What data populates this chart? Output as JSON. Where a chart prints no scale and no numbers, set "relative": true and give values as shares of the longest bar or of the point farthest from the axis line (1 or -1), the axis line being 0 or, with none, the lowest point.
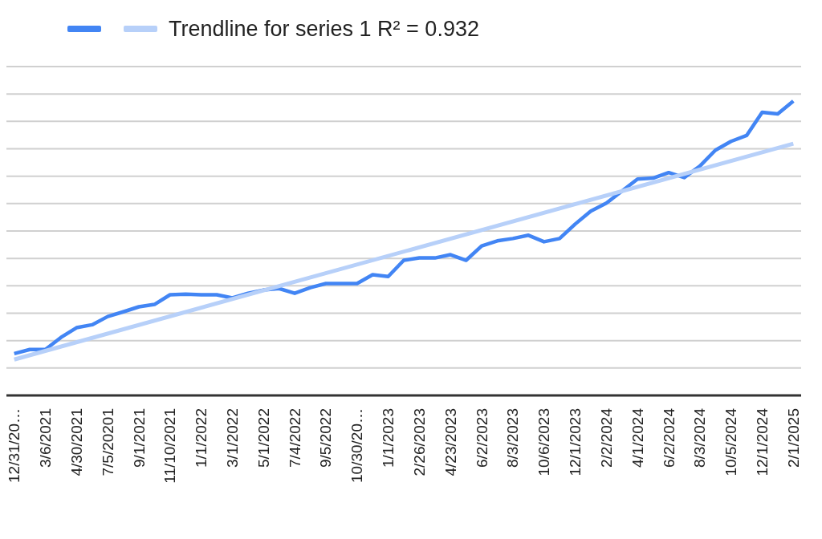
{
  "chart_data": {
    "type": "line",
    "relative": true,
    "grid": "y",
    "legend": "top",
    "marker": "none",
    "line_style": "solid",
    "categories": [
      "12/31/20…",
      null,
      "3/6/2021",
      null,
      "4/30/2021",
      null,
      "7/5/20201",
      null,
      "9/1/2021",
      null,
      "11/10/2021",
      null,
      "1/1/2022",
      null,
      "3/1/2022",
      null,
      "5/1/2022",
      null,
      "7/4/2022",
      null,
      "9/5/2022",
      null,
      "10/30/20…",
      null,
      "1/1/2023",
      null,
      "2/26/2023",
      null,
      "4/23/2023",
      null,
      "6/2/2023",
      null,
      "8/3/2023",
      null,
      "10/6/2023",
      null,
      "12/1/2023",
      null,
      "2/2/2024",
      null,
      "4/1/2024",
      null,
      "6/2/2024",
      null,
      "8/3/2024",
      null,
      "10/5/2024",
      null,
      "12/1/2024",
      null,
      "2/1/2025"
    ],
    "series": [
      {
        "color": "#4285f4",
        "values": [
          0.142,
          0.156,
          0.156,
          0.197,
          0.23,
          0.24,
          0.268,
          0.284,
          0.301,
          0.309,
          0.342,
          0.344,
          0.342,
          0.342,
          0.331,
          0.347,
          0.358,
          0.363,
          0.347,
          0.366,
          0.38,
          0.38,
          0.38,
          0.41,
          0.404,
          0.459,
          0.467,
          0.467,
          0.478,
          0.459,
          0.508,
          0.525,
          0.533,
          0.544,
          0.522,
          0.533,
          0.582,
          0.626,
          0.653,
          0.694,
          0.735,
          0.738,
          0.757,
          0.74,
          0.779,
          0.833,
          0.863,
          0.883,
          0.962,
          0.956,
          1
        ]
      },
      {
        "name": "Trendline for series 1 R² = 0.932",
        "color": "#b7d0f9",
        "values": [
          0.122,
          null,
          null,
          null,
          null,
          null,
          null,
          null,
          null,
          null,
          null,
          null,
          null,
          null,
          null,
          null,
          null,
          null,
          null,
          null,
          null,
          null,
          null,
          null,
          null,
          null,
          null,
          null,
          null,
          null,
          null,
          null,
          null,
          null,
          null,
          null,
          null,
          null,
          null,
          null,
          null,
          null,
          null,
          null,
          null,
          null,
          null,
          null,
          null,
          null,
          0.855
        ]
      }
    ]
  }
}
